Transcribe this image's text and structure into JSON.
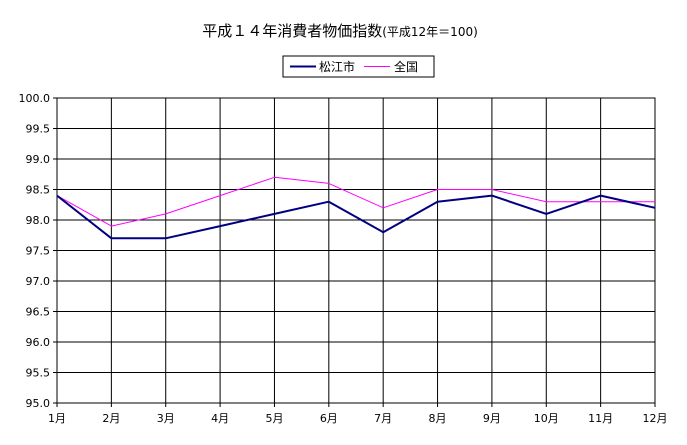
{
  "chart_data": {
    "type": "line",
    "title": "平成１４年消費者物価指数",
    "subtitle": "(平成12年＝100)",
    "xlabel": "",
    "ylabel": "",
    "categories": [
      "1月",
      "2月",
      "3月",
      "4月",
      "5月",
      "6月",
      "7月",
      "8月",
      "9月",
      "10月",
      "11月",
      "12月"
    ],
    "y_ticks": [
      "100.0",
      "99.5",
      "99.0",
      "98.5",
      "98.0",
      "97.5",
      "97.0",
      "96.5",
      "96.0",
      "95.5",
      "95.0"
    ],
    "ylim": [
      95.0,
      100.0
    ],
    "grid": true,
    "legend_position": "top-center",
    "series": [
      {
        "name": "松江市",
        "color": "#000080",
        "values": [
          98.4,
          97.7,
          97.7,
          97.9,
          98.1,
          98.3,
          97.8,
          98.3,
          98.4,
          98.1,
          98.4,
          98.2
        ]
      },
      {
        "name": "全国",
        "color": "#ff00ff",
        "values": [
          98.4,
          97.9,
          98.1,
          98.4,
          98.7,
          98.6,
          98.2,
          98.5,
          98.5,
          98.3,
          98.3,
          98.3
        ]
      }
    ]
  }
}
